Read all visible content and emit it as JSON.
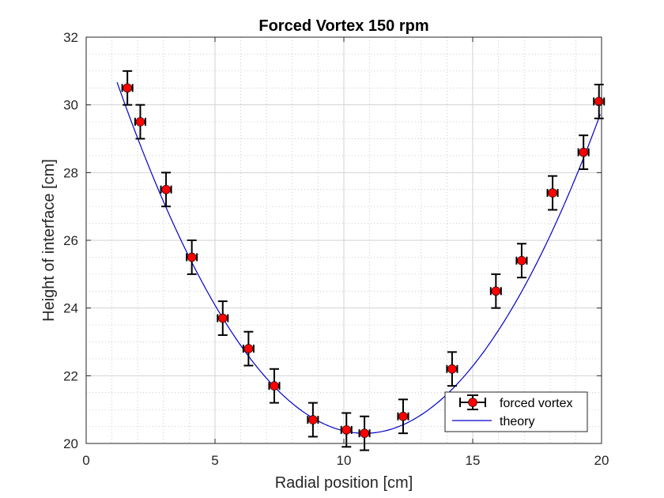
{
  "chart_data": {
    "type": "scatter",
    "title": "Forced Vortex 150 rpm",
    "xlabel": "Radial position [cm]",
    "ylabel": "Height of interface [cm]",
    "xlim": [
      0,
      20
    ],
    "ylim": [
      20,
      32
    ],
    "xticks": [
      0,
      5,
      10,
      15,
      20
    ],
    "yticks": [
      20,
      22,
      24,
      26,
      28,
      30,
      32
    ],
    "grid": true,
    "minor_grid": true,
    "legend_position": "bottom-right",
    "series": [
      {
        "name": "forced vortex",
        "kind": "errorbar",
        "color": "#ff0000",
        "errorbar_color": "#000000",
        "x_error": 0.2,
        "y_error": 0.5,
        "points": [
          {
            "x": 1.6,
            "y": 30.5
          },
          {
            "x": 2.1,
            "y": 29.5
          },
          {
            "x": 3.1,
            "y": 27.5
          },
          {
            "x": 4.1,
            "y": 25.5
          },
          {
            "x": 5.3,
            "y": 23.7
          },
          {
            "x": 6.3,
            "y": 22.8
          },
          {
            "x": 7.3,
            "y": 21.7
          },
          {
            "x": 8.8,
            "y": 20.7
          },
          {
            "x": 10.1,
            "y": 20.4
          },
          {
            "x": 10.8,
            "y": 20.3
          },
          {
            "x": 12.3,
            "y": 20.8
          },
          {
            "x": 14.2,
            "y": 22.2
          },
          {
            "x": 15.9,
            "y": 24.5
          },
          {
            "x": 16.9,
            "y": 25.4
          },
          {
            "x": 18.1,
            "y": 27.4
          },
          {
            "x": 19.3,
            "y": 28.6
          },
          {
            "x": 19.9,
            "y": 30.1
          }
        ]
      },
      {
        "name": "theory",
        "kind": "line",
        "color": "#0000cc",
        "x_range": [
          1.2,
          19.95
        ],
        "vertex_x": 10.8,
        "vertex_y": 20.3,
        "curvature": 0.1125
      }
    ]
  }
}
